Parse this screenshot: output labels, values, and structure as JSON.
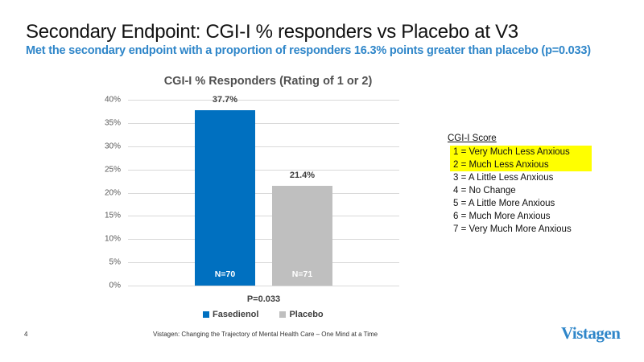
{
  "slide": {
    "title": "Secondary Endpoint: CGI-I % responders vs Placebo at V3",
    "subtitle": "Met the secondary endpoint with a proportion of responders 16.3% points greater than placebo (p=0.033)",
    "page_number": "4",
    "footer": "Vistagen: Changing the Trajectory of Mental Health Care – One Mind at a Time",
    "logo": "Vistagen"
  },
  "chart_data": {
    "type": "bar",
    "title": "CGI-I % Responders (Rating of 1 or 2)",
    "categories": [
      "Fasedienol",
      "Placebo"
    ],
    "values": [
      37.7,
      21.4
    ],
    "value_labels": [
      "37.7%",
      "21.4%"
    ],
    "n_labels": [
      "N=70",
      "N=71"
    ],
    "colors": [
      "#0070c0",
      "#bfbfbf"
    ],
    "xlabel": "P=0.033",
    "ylabel": "",
    "ylim": [
      0,
      40
    ],
    "yticks": [
      "0%",
      "5%",
      "10%",
      "15%",
      "20%",
      "25%",
      "30%",
      "35%",
      "40%"
    ],
    "grid": true,
    "legend": {
      "position": "bottom",
      "entries": [
        {
          "label": "Fasedienol",
          "color": "#0070c0"
        },
        {
          "label": "Placebo",
          "color": "#bfbfbf"
        }
      ]
    }
  },
  "score_legend": {
    "heading": "CGI-I Score",
    "highlight_color": "#ffff00",
    "items": [
      {
        "text": "1 = Very Much Less Anxious",
        "highlighted": true
      },
      {
        "text": "2 = Much Less Anxious",
        "highlighted": true
      },
      {
        "text": "3 = A Little Less Anxious",
        "highlighted": false
      },
      {
        "text": "4 = No Change",
        "highlighted": false
      },
      {
        "text": "5 = A Little More Anxious",
        "highlighted": false
      },
      {
        "text": "6 = Much More Anxious",
        "highlighted": false
      },
      {
        "text": "7 = Very Much More Anxious",
        "highlighted": false
      }
    ]
  }
}
